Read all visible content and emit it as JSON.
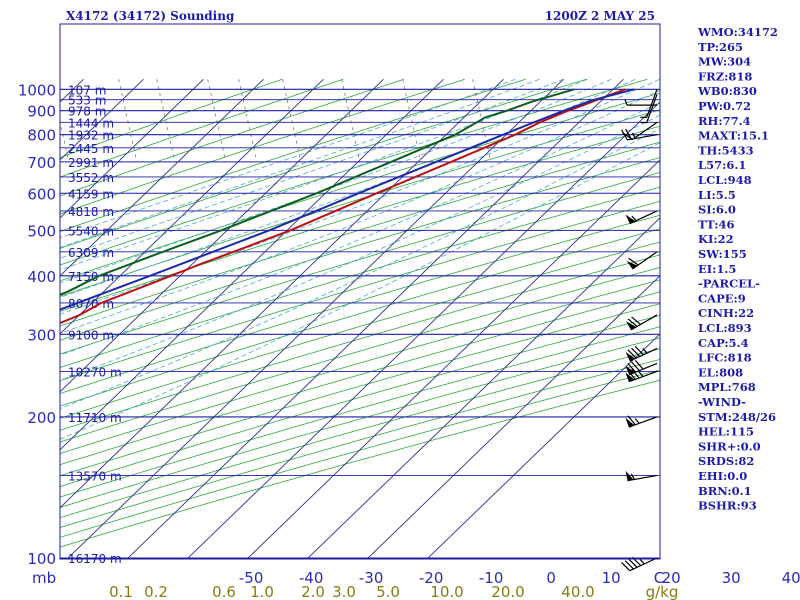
{
  "title_left": "X4172 (34172) Sounding",
  "title_right": "1200Z  2 MAY 25",
  "colors": {
    "isobar": "#1e1ea0",
    "isotherm": "#2f2f8c",
    "dry_adiabat": "#2aa838",
    "moist_adiabat": "#4aa8d8",
    "mixing_ratio": "#7a7a6a",
    "temperature": "#bb1010",
    "dewpoint": "#0b5e1c",
    "parcel": "#1c2aa6",
    "label_blue": "#1b1baa",
    "label_olive": "#8a7a12"
  },
  "chart_data": {
    "type": "skew-t",
    "x_unit": "°C",
    "y_unit": "mb",
    "pressure_levels": [
      100,
      200,
      300,
      400,
      500,
      600,
      700,
      800,
      900,
      1000
    ],
    "temperature_ticks": [
      -50,
      -40,
      -30,
      -20,
      -10,
      0,
      10,
      20,
      30,
      40
    ],
    "axis_corner_labels": [
      "mb",
      "C"
    ],
    "mixing_ratio_ticks": [
      "0.1",
      "0.2",
      "0.6",
      "1.0",
      "2.0",
      "3.0",
      "5.0",
      "10.0",
      "20.0",
      "40.0"
    ],
    "mixing_ratio_unit": "g/kg",
    "height_labels": [
      "16170 m",
      "13570 m",
      "11710 m",
      "10270 m",
      "9100 m",
      "8070 m",
      "7150 m",
      "6309 m",
      "5540 m",
      "4818 m",
      "4159 m",
      "3552 m",
      "2991 m",
      "2445 m",
      "1932 m",
      "1444 m",
      "978 m",
      "533 m",
      "107 m"
    ],
    "height_pressures": [
      100,
      150,
      200,
      250,
      300,
      350,
      400,
      450,
      500,
      550,
      600,
      650,
      700,
      750,
      800,
      850,
      900,
      950,
      1000
    ],
    "temperature_profile": [
      {
        "p": 1000,
        "t": 12.0
      },
      {
        "p": 950,
        "t": 9.2
      },
      {
        "p": 925,
        "t": 7.8
      },
      {
        "p": 900,
        "t": 6.2
      },
      {
        "p": 850,
        "t": 3.5
      },
      {
        "p": 800,
        "t": 1.5
      },
      {
        "p": 700,
        "t": -4.5
      },
      {
        "p": 600,
        "t": -11.5
      },
      {
        "p": 500,
        "t": -19.5
      },
      {
        "p": 460,
        "t": -24.0
      },
      {
        "p": 425,
        "t": -28.5
      },
      {
        "p": 400,
        "t": -31.5
      },
      {
        "p": 350,
        "t": -38.5
      },
      {
        "p": 330,
        "t": -40.0
      },
      {
        "p": 300,
        "t": -44.5
      },
      {
        "p": 290,
        "t": -47.5
      },
      {
        "p": 260,
        "t": -49.0
      },
      {
        "p": 245,
        "t": -49.5
      },
      {
        "p": 230,
        "t": -49.0
      },
      {
        "p": 200,
        "t": -52.5
      },
      {
        "p": 196,
        "t": -53.5
      },
      {
        "p": 150,
        "t": -58.5
      },
      {
        "p": 145,
        "t": -59.5
      },
      {
        "p": 100,
        "t": -64.5
      }
    ],
    "dewpoint_profile": [
      {
        "p": 1000,
        "t": 3.5
      },
      {
        "p": 940,
        "t": -1.5
      },
      {
        "p": 900,
        "t": -4.0
      },
      {
        "p": 870,
        "t": -6.5
      },
      {
        "p": 850,
        "t": -7.0
      },
      {
        "p": 800,
        "t": -8.5
      },
      {
        "p": 700,
        "t": -14.5
      },
      {
        "p": 600,
        "t": -21.5
      },
      {
        "p": 500,
        "t": -31.0
      },
      {
        "p": 450,
        "t": -37.0
      },
      {
        "p": 400,
        "t": -43.5
      },
      {
        "p": 370,
        "t": -46.0
      },
      {
        "p": 350,
        "t": -49.0
      },
      {
        "p": 320,
        "t": -52.0
      },
      {
        "p": 305,
        "t": -54.0
      },
      {
        "p": 295,
        "t": -56.5
      },
      {
        "p": 260,
        "t": -58.0
      },
      {
        "p": 245,
        "t": -60.5
      },
      {
        "p": 200,
        "t": -62.5
      },
      {
        "p": 195,
        "t": -63.5
      },
      {
        "p": 150,
        "t": -70.0
      },
      {
        "p": 140,
        "t": -71.5
      },
      {
        "p": 100,
        "t": -76.5
      }
    ],
    "parcel_profile": [
      {
        "p": 1000,
        "t": 13.5
      },
      {
        "p": 948,
        "t": 8.5
      },
      {
        "p": 900,
        "t": 5.5
      },
      {
        "p": 850,
        "t": 2.5
      },
      {
        "p": 800,
        "t": -0.5
      },
      {
        "p": 700,
        "t": -7.0
      },
      {
        "p": 600,
        "t": -14.5
      },
      {
        "p": 500,
        "t": -23.0
      },
      {
        "p": 400,
        "t": -35.0
      },
      {
        "p": 300,
        "t": -51.0
      },
      {
        "p": 250,
        "t": -61.0
      },
      {
        "p": 200,
        "t": -71.5
      },
      {
        "p": 150,
        "t": -84.0
      },
      {
        "p": 117,
        "t": -94.5
      }
    ],
    "wind_barbs": [
      {
        "p": 100,
        "dir": 245,
        "kt": 45
      },
      {
        "p": 150,
        "dir": 260,
        "kt": 55
      },
      {
        "p": 200,
        "dir": 250,
        "kt": 65
      },
      {
        "p": 250,
        "dir": 250,
        "kt": 75
      },
      {
        "p": 260,
        "dir": 248,
        "kt": 80
      },
      {
        "p": 280,
        "dir": 245,
        "kt": 85
      },
      {
        "p": 330,
        "dir": 240,
        "kt": 70
      },
      {
        "p": 450,
        "dir": 235,
        "kt": 60
      },
      {
        "p": 550,
        "dir": 245,
        "kt": 55
      },
      {
        "p": 800,
        "dir": 260,
        "kt": 25
      },
      {
        "p": 850,
        "dir": 235,
        "kt": 10
      },
      {
        "p": 925,
        "dir": 270,
        "kt": 5
      },
      {
        "p": 975,
        "dir": 200,
        "kt": 5
      },
      {
        "p": 1000,
        "dir": 200,
        "kt": 5
      }
    ]
  },
  "indices": [
    "WMO:34172",
    "TP:265",
    "MW:304",
    "FRZ:818",
    "WB0:830",
    "PW:0.72",
    "RH:77.4",
    "MAXT:15.1",
    "TH:5433",
    "L57:6.1",
    "LCL:948",
    "LI:5.5",
    "SI:6.0",
    "TT:46",
    "KI:22",
    "SW:155",
    "EI:1.5",
    "-PARCEL-",
    "CAPE:9",
    "CINH:22",
    "LCL:893",
    "CAP:5.4",
    "LFC:818",
    "EL:808",
    "MPL:768",
    "-WIND-",
    "STM:248/26",
    "HEL:115",
    "SHR+:0.0",
    "SRDS:82",
    "EHI:0.0",
    "BRN:0.1",
    "BSHR:93"
  ]
}
